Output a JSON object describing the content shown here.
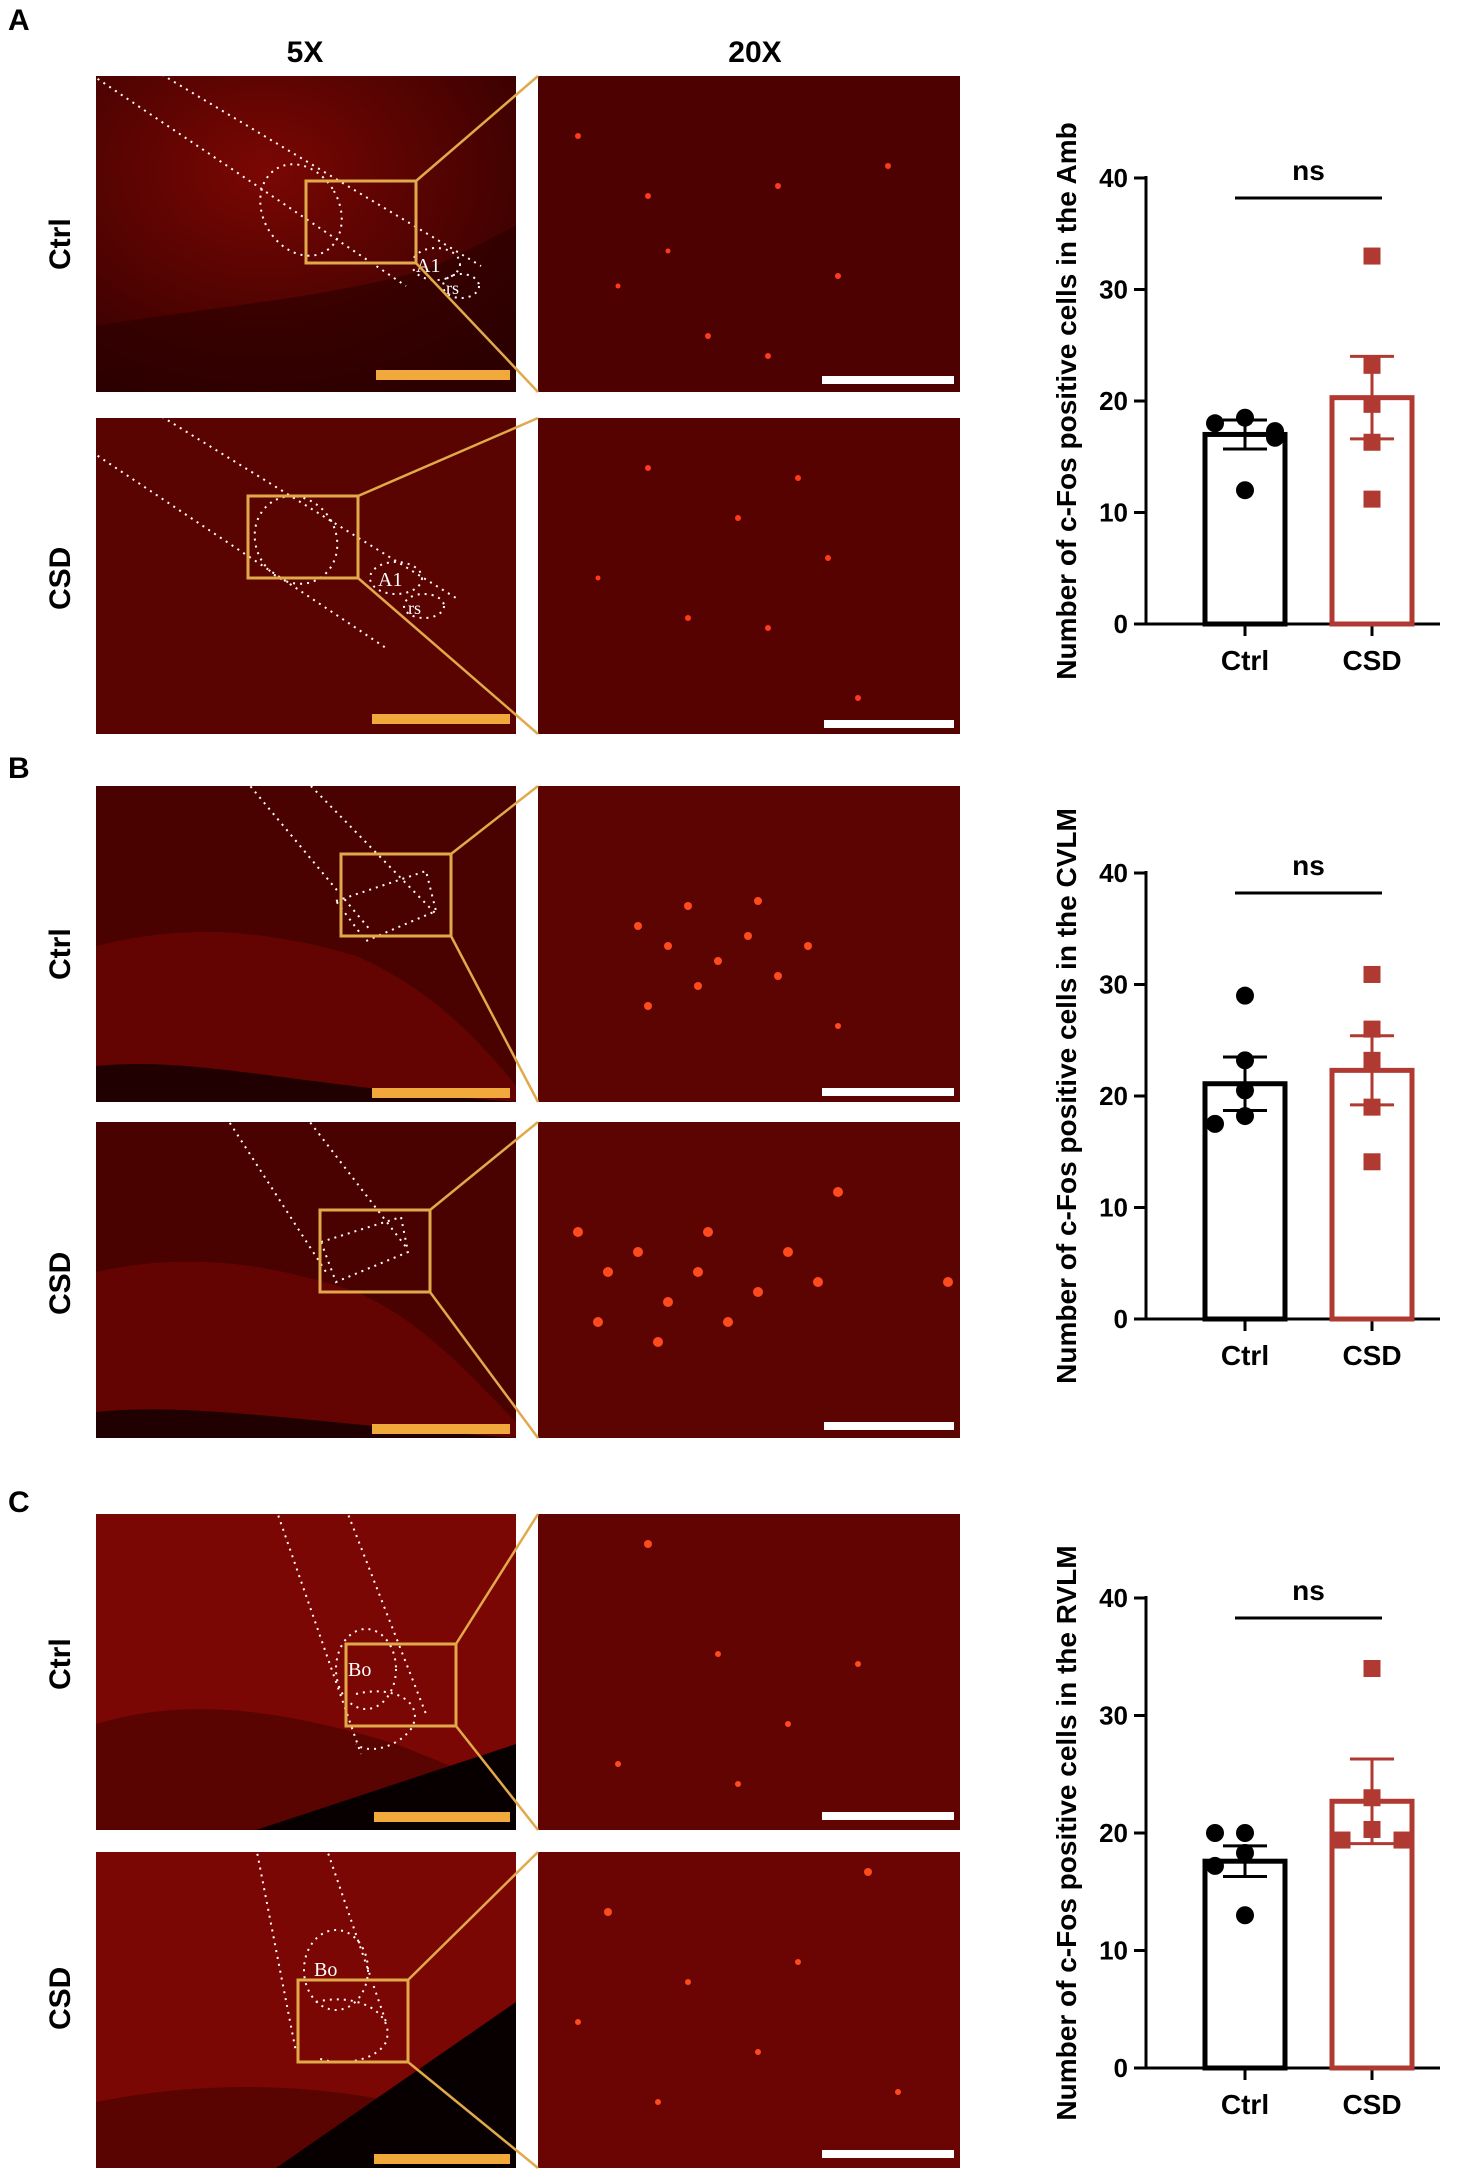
{
  "figure": {
    "column_headers": [
      "5X",
      "20X"
    ],
    "panels": [
      {
        "letter": "A",
        "rows": [
          {
            "label": "Ctrl",
            "region_labels": [
              "A1",
              "rs"
            ]
          },
          {
            "label": "CSD",
            "region_labels": [
              "A1",
              "rs"
            ]
          }
        ]
      },
      {
        "letter": "B",
        "rows": [
          {
            "label": "Ctrl",
            "region_labels": []
          },
          {
            "label": "CSD",
            "region_labels": []
          }
        ]
      },
      {
        "letter": "C",
        "rows": [
          {
            "label": "Ctrl",
            "region_labels": [
              "Bo"
            ]
          },
          {
            "label": "CSD",
            "region_labels": [
              "Bo"
            ]
          }
        ]
      }
    ],
    "colors": {
      "ctrl": "#000000",
      "csd": "#b03a32",
      "box": "#e2a94a",
      "scale_5x": "#f2a93b",
      "scale_20x": "#ffffff",
      "tissue": "#8a0a04",
      "background": "#3a0000"
    }
  },
  "chart_data": [
    {
      "type": "bar",
      "ylabel": "Number of c-Fos positive cells in the Amb",
      "categories": [
        "Ctrl",
        "CSD"
      ],
      "ylim": [
        0,
        40
      ],
      "yticks": [
        0,
        10,
        20,
        30,
        40
      ],
      "significance": "ns",
      "series": [
        {
          "values": [
            17,
            20.3
          ],
          "sem": [
            1.3,
            3.7
          ]
        }
      ],
      "points": [
        [
          18.5,
          18.0,
          17.3,
          16.7,
          12.0
        ],
        [
          33.0,
          23.2,
          19.7,
          16.3,
          11.2
        ]
      ]
    },
    {
      "type": "bar",
      "ylabel": "Number of c-Fos positive cells in the CVLM",
      "categories": [
        "Ctrl",
        "CSD"
      ],
      "ylim": [
        0,
        40
      ],
      "yticks": [
        0,
        10,
        20,
        30,
        40
      ],
      "significance": "ns",
      "series": [
        {
          "values": [
            21.1,
            22.3
          ],
          "sem": [
            2.4,
            3.1
          ]
        }
      ],
      "points": [
        [
          29.0,
          23.2,
          20.5,
          18.2,
          17.5
        ],
        [
          30.9,
          26.0,
          23.2,
          19.0,
          14.1
        ]
      ]
    },
    {
      "type": "bar",
      "ylabel": "Number of c-Fos positive cells in the RVLM",
      "categories": [
        "Ctrl",
        "CSD"
      ],
      "ylim": [
        0,
        40
      ],
      "yticks": [
        0,
        10,
        20,
        30,
        40
      ],
      "significance": "ns",
      "series": [
        {
          "values": [
            17.6,
            22.7
          ],
          "sem": [
            1.3,
            3.6
          ]
        }
      ],
      "points": [
        [
          20.0,
          20.0,
          18.3,
          17.2,
          13.0
        ],
        [
          34.0,
          23.0,
          20.3,
          19.4,
          19.4
        ]
      ]
    }
  ]
}
